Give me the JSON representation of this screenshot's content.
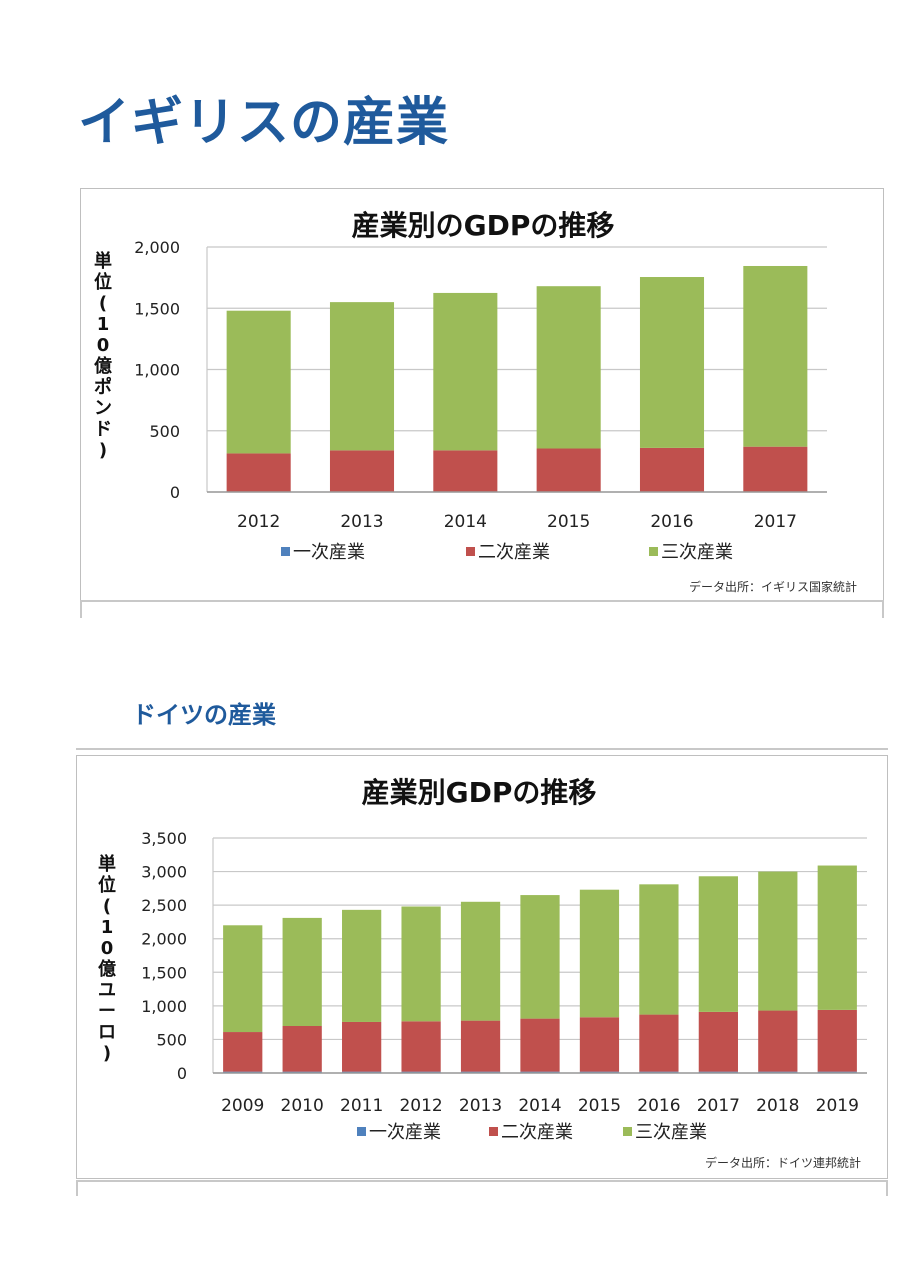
{
  "page": {
    "heading_uk": "イギリスの産業",
    "heading_de": "ドイツの産業",
    "heading_color": "#1f5a9c"
  },
  "colors": {
    "primary": "#4f81bd",
    "secondary": "#c0504d",
    "tertiary": "#9bbb59",
    "grid": "#c8c8c8"
  },
  "chart_data": [
    {
      "type": "bar",
      "stacked": true,
      "title": "産業別のGDPの推移",
      "ylabel": "単位(10億ポンド)",
      "ylabel_chars": [
        "単",
        "位",
        "(",
        "1",
        "0",
        "億",
        "ポ",
        "ン",
        "ド",
        ")"
      ],
      "xlabel": "",
      "ylim": [
        0,
        2000
      ],
      "yticks": [
        0,
        500,
        1000,
        1500,
        2000
      ],
      "ytick_labels": [
        "0",
        "500",
        "1,000",
        "1,500",
        "2,000"
      ],
      "grid": true,
      "legend_position": "bottom",
      "categories": [
        "2012",
        "2013",
        "2014",
        "2015",
        "2016",
        "2017"
      ],
      "series": [
        {
          "name": "一次産業",
          "values": [
            0,
            0,
            0,
            0,
            0,
            0
          ]
        },
        {
          "name": "二次産業",
          "values": [
            315,
            340,
            340,
            355,
            360,
            370
          ]
        },
        {
          "name": "三次産業",
          "values": [
            1165,
            1210,
            1285,
            1325,
            1395,
            1475
          ]
        }
      ],
      "source": "データ出所：イギリス国家統計"
    },
    {
      "type": "bar",
      "stacked": true,
      "title": "産業別GDPの推移",
      "ylabel": "単位(10億ユーロ)",
      "ylabel_chars": [
        "単",
        "位",
        "(",
        "1",
        "0",
        "億",
        "ユ",
        "ー",
        "ロ",
        ")"
      ],
      "xlabel": "",
      "ylim": [
        0,
        3500
      ],
      "yticks": [
        0,
        500,
        1000,
        1500,
        2000,
        2500,
        3000,
        3500
      ],
      "ytick_labels": [
        "0",
        "500",
        "1,000",
        "1,500",
        "2,000",
        "2,500",
        "3,000",
        "3,500"
      ],
      "grid": true,
      "legend_position": "bottom",
      "categories": [
        "2009",
        "2010",
        "2011",
        "2012",
        "2013",
        "2014",
        "2015",
        "2016",
        "2017",
        "2018",
        "2019"
      ],
      "series": [
        {
          "name": "一次産業",
          "values": [
            20,
            20,
            20,
            20,
            20,
            20,
            20,
            20,
            20,
            20,
            20
          ]
        },
        {
          "name": "二次産業",
          "values": [
            590,
            680,
            740,
            750,
            760,
            790,
            810,
            850,
            890,
            910,
            920
          ]
        },
        {
          "name": "三次産業",
          "values": [
            1590,
            1610,
            1670,
            1710,
            1770,
            1840,
            1900,
            1940,
            2020,
            2070,
            2150
          ]
        }
      ],
      "source": "データ出所：ドイツ連邦統計"
    }
  ]
}
